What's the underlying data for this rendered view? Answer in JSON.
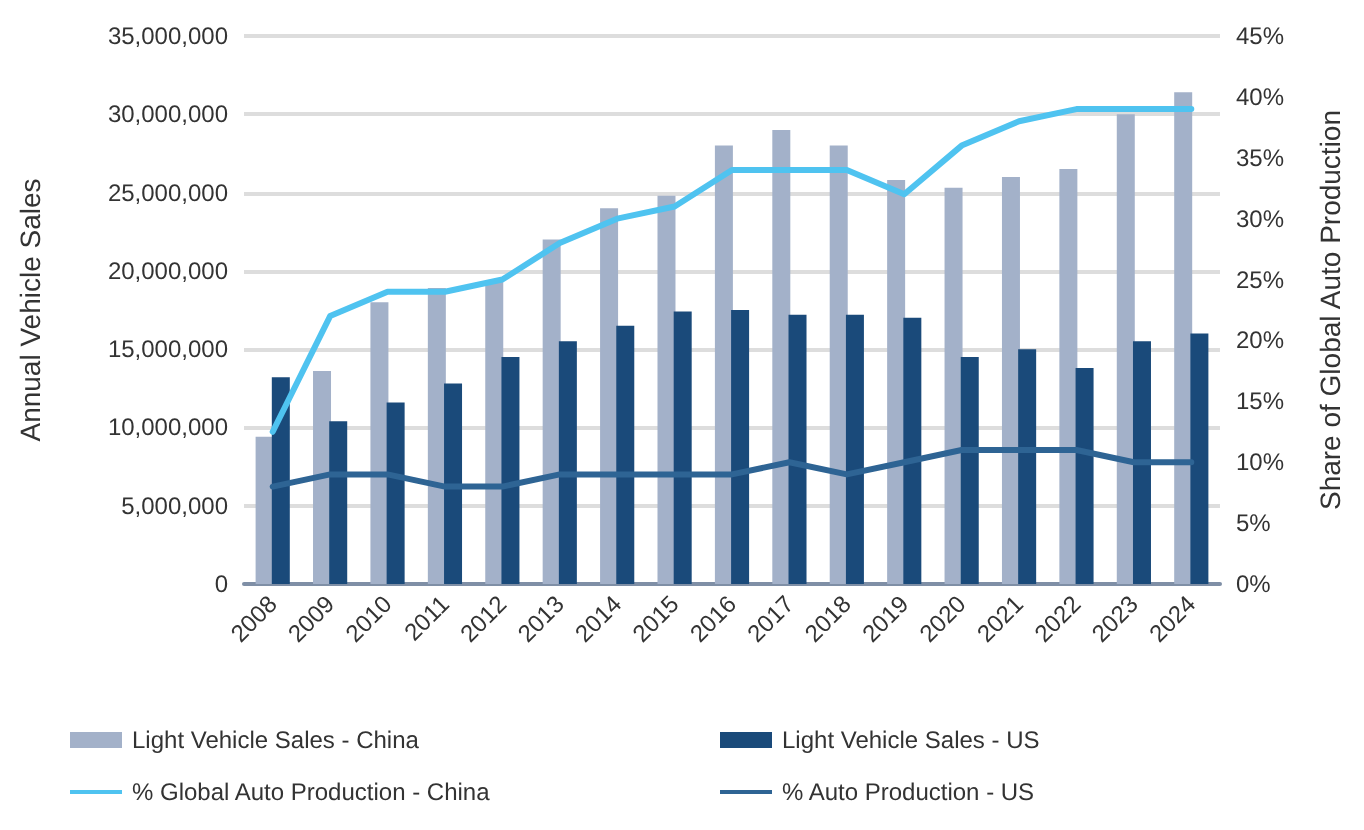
{
  "chart_data": {
    "type": "bar",
    "categories": [
      "2008",
      "2009",
      "2010",
      "2011",
      "2012",
      "2013",
      "2014",
      "2015",
      "2016",
      "2017",
      "2018",
      "2019",
      "2020",
      "2021",
      "2022",
      "2023",
      "2024"
    ],
    "series": [
      {
        "name": "Light Vehicle Sales - China",
        "color": "#a3b1c9",
        "values": [
          9400000,
          13600000,
          18000000,
          18900000,
          19300000,
          22000000,
          24000000,
          24800000,
          28000000,
          29000000,
          28000000,
          25800000,
          25300000,
          26000000,
          26500000,
          30000000,
          31400000
        ]
      },
      {
        "name": "Light Vehicle Sales - US",
        "color": "#1a4a7a",
        "values": [
          13200000,
          10400000,
          11600000,
          12800000,
          14500000,
          15500000,
          16500000,
          17400000,
          17500000,
          17200000,
          17200000,
          17000000,
          14500000,
          15000000,
          13800000,
          15500000,
          16000000
        ]
      },
      {
        "name": "% Global Auto Production - China",
        "type": "line",
        "axis": "y2",
        "color": "#4fc3f0",
        "values": [
          12.5,
          22,
          24,
          24,
          25,
          28,
          30,
          31,
          34,
          34,
          34,
          32,
          36,
          38,
          39,
          39,
          39
        ]
      },
      {
        "name": "% Auto Production - US",
        "type": "line",
        "axis": "y2",
        "color": "#2e6494",
        "values": [
          8,
          9,
          9,
          8,
          8,
          9,
          9,
          9,
          9,
          10,
          9,
          10,
          11,
          11,
          11,
          10,
          10
        ]
      }
    ],
    "ylabel": "Annual Vehicle Sales",
    "y2label": "Share of Global Auto Production",
    "ylim": [
      0,
      35000000
    ],
    "yticks": [
      {
        "value": 0,
        "label": "0"
      },
      {
        "value": 5000000,
        "label": "5,000,000"
      },
      {
        "value": 10000000,
        "label": "10,000,000"
      },
      {
        "value": 15000000,
        "label": "15,000,000"
      },
      {
        "value": 20000000,
        "label": "20,000,000"
      },
      {
        "value": 25000000,
        "label": "25,000,000"
      },
      {
        "value": 30000000,
        "label": "30,000,000"
      },
      {
        "value": 35000000,
        "label": "35,000,000"
      }
    ],
    "y2lim": [
      0,
      45
    ],
    "y2ticks": [
      {
        "value": 0,
        "label": "0%"
      },
      {
        "value": 5,
        "label": "5%"
      },
      {
        "value": 10,
        "label": "10%"
      },
      {
        "value": 15,
        "label": "15%"
      },
      {
        "value": 20,
        "label": "20%"
      },
      {
        "value": 25,
        "label": "25%"
      },
      {
        "value": 30,
        "label": "30%"
      },
      {
        "value": 35,
        "label": "35%"
      },
      {
        "value": 40,
        "label": "40%"
      },
      {
        "value": 45,
        "label": "45%"
      }
    ],
    "grid": "y",
    "legend": "bottom",
    "marker": "none",
    "line_style": "solid"
  }
}
